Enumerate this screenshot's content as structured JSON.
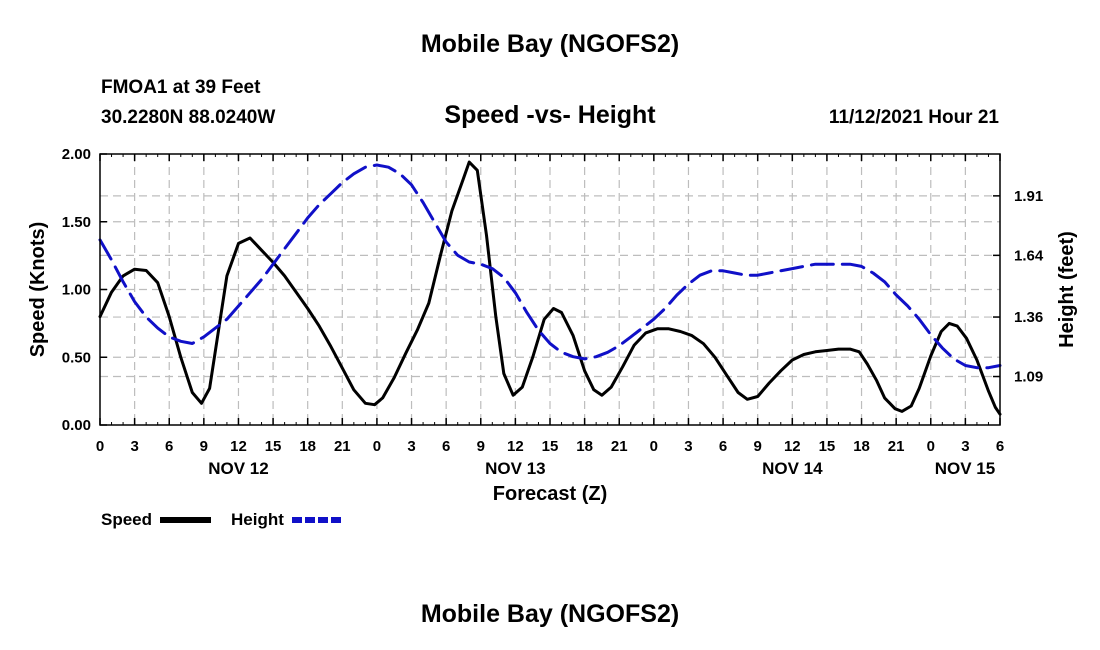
{
  "header": {
    "title_top": "Mobile Bay (NGOFS2)",
    "station": "FMOA1 at 39 Feet",
    "coords": "30.2280N  88.0240W",
    "subtitle": "Speed -vs- Height",
    "datetime": "11/12/2021 Hour 21",
    "title_bottom": "Mobile Bay (NGOFS2)"
  },
  "chart_data": {
    "type": "line",
    "title": "Speed -vs- Height",
    "xlabel": "Forecast (Z)",
    "ylabel": "Speed (Knots)",
    "y2label": "Height (feet)",
    "xlim": [
      0,
      78
    ],
    "ylim": [
      0,
      2.0
    ],
    "y2lim": [
      0.87,
      2.1
    ],
    "yticks": [
      "0.00",
      "0.50",
      "1.00",
      "1.50",
      "2.00"
    ],
    "y2ticks": [
      "1.09",
      "1.36",
      "1.64",
      "1.91"
    ],
    "xticks": [
      {
        "x": 0,
        "label": "0"
      },
      {
        "x": 3,
        "label": "3"
      },
      {
        "x": 6,
        "label": "6"
      },
      {
        "x": 9,
        "label": "9"
      },
      {
        "x": 12,
        "label": "12"
      },
      {
        "x": 15,
        "label": "15"
      },
      {
        "x": 18,
        "label": "18"
      },
      {
        "x": 21,
        "label": "21"
      },
      {
        "x": 24,
        "label": "0"
      },
      {
        "x": 27,
        "label": "3"
      },
      {
        "x": 30,
        "label": "6"
      },
      {
        "x": 33,
        "label": "9"
      },
      {
        "x": 36,
        "label": "12"
      },
      {
        "x": 39,
        "label": "15"
      },
      {
        "x": 42,
        "label": "18"
      },
      {
        "x": 45,
        "label": "21"
      },
      {
        "x": 48,
        "label": "0"
      },
      {
        "x": 51,
        "label": "3"
      },
      {
        "x": 54,
        "label": "6"
      },
      {
        "x": 57,
        "label": "9"
      },
      {
        "x": 60,
        "label": "12"
      },
      {
        "x": 63,
        "label": "15"
      },
      {
        "x": 66,
        "label": "18"
      },
      {
        "x": 69,
        "label": "21"
      },
      {
        "x": 72,
        "label": "0"
      },
      {
        "x": 75,
        "label": "3"
      },
      {
        "x": 78,
        "label": "6"
      }
    ],
    "day_labels": [
      {
        "x": 12,
        "label": "NOV 12"
      },
      {
        "x": 36,
        "label": "NOV 13"
      },
      {
        "x": 60,
        "label": "NOV 14"
      },
      {
        "x": 78,
        "label": "NOV 15"
      }
    ],
    "grid": true,
    "series": [
      {
        "name": "Speed",
        "color": "#000000",
        "dash": "solid",
        "axis": "left",
        "points": [
          [
            0,
            0.8
          ],
          [
            1,
            0.98
          ],
          [
            2,
            1.1
          ],
          [
            3,
            1.15
          ],
          [
            4,
            1.14
          ],
          [
            5,
            1.05
          ],
          [
            6,
            0.8
          ],
          [
            7,
            0.5
          ],
          [
            8,
            0.24
          ],
          [
            8.8,
            0.16
          ],
          [
            9.5,
            0.27
          ],
          [
            11,
            1.1
          ],
          [
            12,
            1.34
          ],
          [
            13,
            1.38
          ],
          [
            14,
            1.29
          ],
          [
            15,
            1.2
          ],
          [
            16,
            1.1
          ],
          [
            17,
            0.98
          ],
          [
            18,
            0.86
          ],
          [
            19,
            0.73
          ],
          [
            20,
            0.58
          ],
          [
            21,
            0.42
          ],
          [
            22,
            0.26
          ],
          [
            23,
            0.16
          ],
          [
            23.8,
            0.15
          ],
          [
            24.5,
            0.2
          ],
          [
            25.5,
            0.35
          ],
          [
            26.5,
            0.53
          ],
          [
            27.5,
            0.7
          ],
          [
            28.5,
            0.9
          ],
          [
            29.5,
            1.25
          ],
          [
            30.5,
            1.58
          ],
          [
            31.5,
            1.82
          ],
          [
            32,
            1.94
          ],
          [
            32.7,
            1.88
          ],
          [
            33.5,
            1.4
          ],
          [
            34.3,
            0.8
          ],
          [
            35,
            0.38
          ],
          [
            35.8,
            0.22
          ],
          [
            36.6,
            0.28
          ],
          [
            37.5,
            0.5
          ],
          [
            38.5,
            0.78
          ],
          [
            39.3,
            0.86
          ],
          [
            40,
            0.83
          ],
          [
            41,
            0.66
          ],
          [
            42,
            0.4
          ],
          [
            42.8,
            0.26
          ],
          [
            43.5,
            0.22
          ],
          [
            44.3,
            0.28
          ],
          [
            45.3,
            0.43
          ],
          [
            46.3,
            0.59
          ],
          [
            47.3,
            0.68
          ],
          [
            48.3,
            0.71
          ],
          [
            49.3,
            0.71
          ],
          [
            50.3,
            0.69
          ],
          [
            51.3,
            0.66
          ],
          [
            52.3,
            0.6
          ],
          [
            53.3,
            0.5
          ],
          [
            54.3,
            0.37
          ],
          [
            55.3,
            0.24
          ],
          [
            56.1,
            0.19
          ],
          [
            57,
            0.21
          ],
          [
            58,
            0.31
          ],
          [
            59,
            0.4
          ],
          [
            60,
            0.48
          ],
          [
            61,
            0.52
          ],
          [
            62,
            0.54
          ],
          [
            63,
            0.55
          ],
          [
            64,
            0.56
          ],
          [
            65,
            0.56
          ],
          [
            65.8,
            0.54
          ],
          [
            66.5,
            0.45
          ],
          [
            67.3,
            0.33
          ],
          [
            68,
            0.2
          ],
          [
            68.9,
            0.12
          ],
          [
            69.5,
            0.1
          ],
          [
            70.3,
            0.14
          ],
          [
            71,
            0.27
          ],
          [
            72,
            0.51
          ],
          [
            72.9,
            0.69
          ],
          [
            73.6,
            0.75
          ],
          [
            74.3,
            0.73
          ],
          [
            75.1,
            0.64
          ],
          [
            76,
            0.48
          ],
          [
            77,
            0.25
          ],
          [
            77.6,
            0.13
          ],
          [
            78,
            0.08
          ]
        ]
      },
      {
        "name": "Height",
        "color": "#1010c8",
        "dash": "dashed",
        "axis": "right",
        "points": [
          [
            0,
            1.71
          ],
          [
            1,
            1.62
          ],
          [
            2,
            1.52
          ],
          [
            3,
            1.43
          ],
          [
            4,
            1.36
          ],
          [
            5,
            1.31
          ],
          [
            6,
            1.27
          ],
          [
            7,
            1.25
          ],
          [
            8,
            1.24
          ],
          [
            9,
            1.27
          ],
          [
            10,
            1.31
          ],
          [
            11,
            1.35
          ],
          [
            12,
            1.41
          ],
          [
            13,
            1.47
          ],
          [
            14,
            1.53
          ],
          [
            15,
            1.6
          ],
          [
            16,
            1.67
          ],
          [
            17,
            1.74
          ],
          [
            18,
            1.81
          ],
          [
            19,
            1.87
          ],
          [
            20,
            1.92
          ],
          [
            21,
            1.97
          ],
          [
            22,
            2.01
          ],
          [
            23,
            2.04
          ],
          [
            24,
            2.05
          ],
          [
            25,
            2.04
          ],
          [
            26,
            2.01
          ],
          [
            27,
            1.96
          ],
          [
            28,
            1.88
          ],
          [
            29,
            1.79
          ],
          [
            30,
            1.7
          ],
          [
            31,
            1.64
          ],
          [
            32,
            1.61
          ],
          [
            33,
            1.6
          ],
          [
            34,
            1.58
          ],
          [
            35,
            1.54
          ],
          [
            36,
            1.47
          ],
          [
            37,
            1.38
          ],
          [
            38,
            1.3
          ],
          [
            39,
            1.24
          ],
          [
            40,
            1.2
          ],
          [
            41,
            1.18
          ],
          [
            42,
            1.17
          ],
          [
            43,
            1.18
          ],
          [
            44,
            1.2
          ],
          [
            45,
            1.23
          ],
          [
            46,
            1.27
          ],
          [
            47,
            1.31
          ],
          [
            48,
            1.35
          ],
          [
            49,
            1.4
          ],
          [
            50,
            1.46
          ],
          [
            51,
            1.51
          ],
          [
            52,
            1.55
          ],
          [
            53,
            1.57
          ],
          [
            54,
            1.57
          ],
          [
            55,
            1.56
          ],
          [
            56,
            1.55
          ],
          [
            57,
            1.55
          ],
          [
            58,
            1.56
          ],
          [
            59,
            1.57
          ],
          [
            60,
            1.58
          ],
          [
            61,
            1.59
          ],
          [
            62,
            1.6
          ],
          [
            63,
            1.6
          ],
          [
            64,
            1.6
          ],
          [
            65,
            1.6
          ],
          [
            66,
            1.59
          ],
          [
            67,
            1.56
          ],
          [
            68,
            1.52
          ],
          [
            69,
            1.46
          ],
          [
            70,
            1.41
          ],
          [
            71,
            1.35
          ],
          [
            72,
            1.28
          ],
          [
            73,
            1.22
          ],
          [
            74,
            1.17
          ],
          [
            75,
            1.14
          ],
          [
            76,
            1.13
          ],
          [
            77,
            1.13
          ],
          [
            78,
            1.14
          ]
        ]
      }
    ],
    "legend": {
      "position": "bottom-left",
      "items": [
        {
          "label": "Speed",
          "color": "#000000",
          "dash": "solid"
        },
        {
          "label": "Height",
          "color": "#1010c8",
          "dash": "dashed"
        }
      ]
    }
  }
}
